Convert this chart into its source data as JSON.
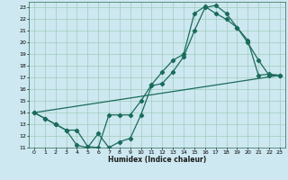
{
  "xlabel": "Humidex (Indice chaleur)",
  "bg_color": "#cde8f0",
  "grid_color": "#a0ccbb",
  "line_color": "#1a6b5a",
  "xlim": [
    -0.5,
    23.5
  ],
  "ylim": [
    11,
    23.5
  ],
  "xticks": [
    0,
    1,
    2,
    3,
    4,
    5,
    6,
    7,
    8,
    9,
    10,
    11,
    12,
    13,
    14,
    15,
    16,
    17,
    18,
    19,
    20,
    21,
    22,
    23
  ],
  "yticks": [
    11,
    12,
    13,
    14,
    15,
    16,
    17,
    18,
    19,
    20,
    21,
    22,
    23
  ],
  "line1_x": [
    0,
    1,
    2,
    3,
    4,
    5,
    6,
    7,
    8,
    9,
    10,
    11,
    12,
    13,
    14,
    15,
    16,
    17,
    18,
    19,
    20,
    21,
    22,
    23
  ],
  "line1_y": [
    14.0,
    13.5,
    13.0,
    12.5,
    11.2,
    11.0,
    12.2,
    11.0,
    11.5,
    11.8,
    13.8,
    16.3,
    16.5,
    17.5,
    18.8,
    21.0,
    23.0,
    23.2,
    22.5,
    21.3,
    20.0,
    18.5,
    17.2,
    17.2
  ],
  "line2_x": [
    0,
    1,
    2,
    3,
    4,
    5,
    6,
    7,
    8,
    9,
    10,
    11,
    12,
    13,
    14,
    15,
    16,
    17,
    18,
    19,
    20,
    21,
    22,
    23
  ],
  "line2_y": [
    14.0,
    13.5,
    13.0,
    12.5,
    12.5,
    11.1,
    11.0,
    13.8,
    13.8,
    13.8,
    15.0,
    16.4,
    17.5,
    18.5,
    19.0,
    22.5,
    23.1,
    22.5,
    22.0,
    21.3,
    20.2,
    17.2,
    17.3,
    17.2
  ],
  "line3_x": [
    0,
    23
  ],
  "line3_y": [
    14.0,
    17.2
  ]
}
